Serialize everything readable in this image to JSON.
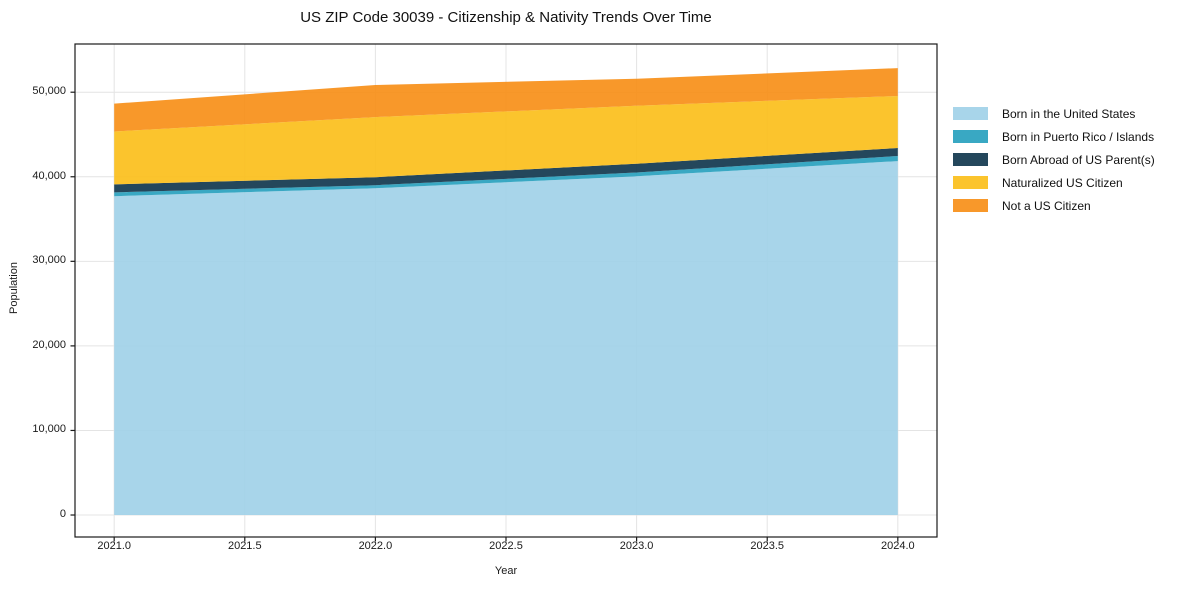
{
  "title": "US ZIP Code 30039 - Citizenship & Nativity Trends Over Time",
  "chart_data": {
    "type": "area",
    "stacked": true,
    "title": "US ZIP Code 30039 - Citizenship & Nativity Trends Over Time",
    "xlabel": "Year",
    "ylabel": "Population",
    "x": [
      2021.0,
      2022.0,
      2023.0,
      2024.0
    ],
    "series": [
      {
        "name": "Born in the United States",
        "color": "#9ed0e8",
        "values": [
          37700,
          38650,
          40050,
          41850
        ]
      },
      {
        "name": "Born in Puerto Rico / Islands",
        "color": "#249ebd",
        "values": [
          450,
          350,
          450,
          600
        ]
      },
      {
        "name": "Born Abroad of US Parent(s)",
        "color": "#0c334a",
        "values": [
          950,
          950,
          1050,
          950
        ]
      },
      {
        "name": "Naturalized US Citizen",
        "color": "#fbbe16",
        "values": [
          6250,
          7100,
          6850,
          6150
        ]
      },
      {
        "name": "Not a US Citizen",
        "color": "#f78d13",
        "values": [
          3300,
          3800,
          3200,
          3300
        ]
      }
    ],
    "stacked_totals": [
      48650,
      50850,
      51600,
      52850
    ],
    "xlim": [
      2020.85,
      2024.15
    ],
    "ylim": [
      -2600,
      55700
    ],
    "xticks": [
      2021.0,
      2021.5,
      2022.0,
      2022.5,
      2023.0,
      2023.5,
      2024.0
    ],
    "xtick_labels": [
      "2021.0",
      "2021.5",
      "2022.0",
      "2022.5",
      "2023.0",
      "2023.5",
      "2024.0"
    ],
    "yticks": [
      0,
      10000,
      20000,
      30000,
      40000,
      50000
    ],
    "ytick_labels": [
      "0",
      "10,000",
      "20,000",
      "30,000",
      "40,000",
      "50,000"
    ],
    "grid": true,
    "grid_color": "#e4e4e4",
    "axis_color": "#1a1a1a",
    "fill_opacity": 0.9,
    "legend_position": "right-outside"
  }
}
